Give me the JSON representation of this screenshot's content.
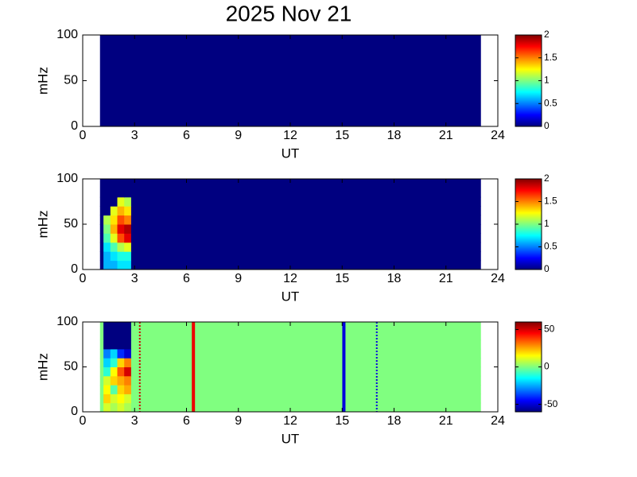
{
  "title": "2025 Nov 21",
  "chart_data": [
    {
      "type": "heatmap",
      "xlabel": "UT",
      "ylabel": "mHz",
      "xlim": [
        0,
        24
      ],
      "xticks": [
        0,
        3,
        6,
        9,
        12,
        15,
        18,
        21,
        24
      ],
      "ylim": [
        0,
        100
      ],
      "yticks": [
        0,
        50,
        100
      ],
      "xbins": [
        1,
        23
      ],
      "ybins": [
        0,
        100
      ],
      "values": [
        [
          0
        ]
      ],
      "colormap": "jet",
      "clim": [
        0,
        2
      ],
      "cticks": [
        0,
        0.5,
        1,
        1.5,
        2
      ]
    },
    {
      "type": "heatmap",
      "xlabel": "UT",
      "ylabel": "mHz",
      "xlim": [
        0,
        24
      ],
      "xticks": [
        0,
        3,
        6,
        9,
        12,
        15,
        18,
        21,
        24
      ],
      "ylim": [
        0,
        100
      ],
      "yticks": [
        0,
        50,
        100
      ],
      "xbins": [
        1,
        1.2,
        1.6,
        2.0,
        2.4,
        2.8,
        23
      ],
      "ybins": [
        0,
        10,
        20,
        30,
        40,
        50,
        60,
        70,
        80,
        100
      ],
      "values": [
        [
          0,
          0.6,
          0.6,
          0.7,
          0.7,
          0
        ],
        [
          0,
          0.6,
          0.7,
          0.8,
          0.8,
          0
        ],
        [
          0,
          0.7,
          0.9,
          1.1,
          1.2,
          0
        ],
        [
          0,
          0.9,
          1.2,
          1.6,
          1.8,
          0
        ],
        [
          0,
          1.0,
          1.4,
          1.8,
          1.9,
          0
        ],
        [
          0,
          1.1,
          1.3,
          1.6,
          1.5,
          0
        ],
        [
          0,
          0,
          1.2,
          1.4,
          1.3,
          0
        ],
        [
          0,
          0,
          0,
          1.2,
          1.1,
          0
        ],
        [
          0,
          0,
          0,
          0,
          0,
          0
        ]
      ],
      "colormap": "jet",
      "clim": [
        0,
        2
      ],
      "cticks": [
        0,
        0.5,
        1,
        1.5,
        2
      ]
    },
    {
      "type": "heatmap",
      "xlabel": "UT",
      "ylabel": "mHz",
      "xlim": [
        0,
        24
      ],
      "xticks": [
        0,
        3,
        6,
        9,
        12,
        15,
        18,
        21,
        24
      ],
      "ylim": [
        0,
        100
      ],
      "yticks": [
        0,
        50,
        100
      ],
      "xbins": [
        1,
        1.2,
        1.6,
        2.0,
        2.4,
        2.8,
        23
      ],
      "ybins": [
        0,
        10,
        20,
        30,
        40,
        50,
        60,
        70,
        80,
        100
      ],
      "values": [
        [
          0,
          10,
          5,
          10,
          5,
          0
        ],
        [
          0,
          20,
          10,
          15,
          10,
          0
        ],
        [
          0,
          15,
          -5,
          20,
          25,
          0
        ],
        [
          0,
          10,
          20,
          25,
          30,
          0
        ],
        [
          0,
          -10,
          15,
          35,
          50,
          0
        ],
        [
          0,
          -20,
          -10,
          20,
          30,
          0
        ],
        [
          0,
          -30,
          -20,
          -40,
          -50,
          0
        ],
        [
          0,
          -60,
          -60,
          -60,
          -60,
          0
        ],
        [
          0,
          -60,
          -60,
          -60,
          -60,
          0
        ]
      ],
      "colormap": "jet",
      "clim": [
        -60,
        60
      ],
      "cticks": [
        -50,
        0,
        50
      ],
      "lines": [
        {
          "x": 3.3,
          "color": "#cc0000",
          "style": "dotted"
        },
        {
          "x": 6.4,
          "color": "#ee0000",
          "style": "solid"
        },
        {
          "x": 15.1,
          "color": "#0000dd",
          "style": "solid"
        },
        {
          "x": 17.0,
          "color": "#0000dd",
          "style": "dotted"
        }
      ]
    }
  ]
}
